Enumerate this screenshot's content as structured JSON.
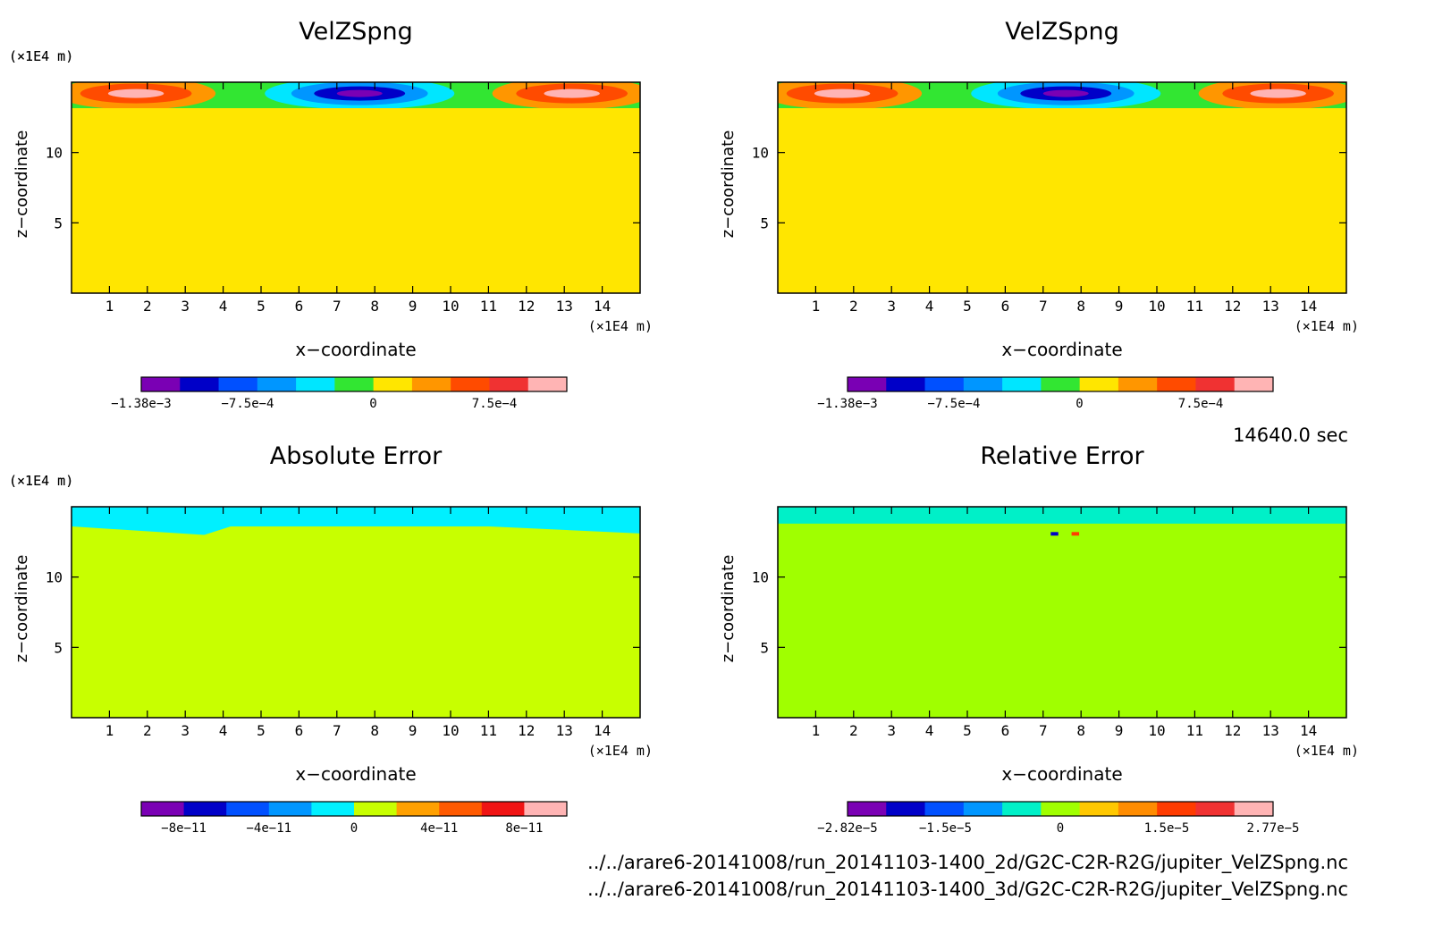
{
  "panels": [
    {
      "title": "VelZSpng",
      "y_unit": "(×1E4 m)",
      "x_unit": "(×1E4 m)",
      "xlabel": "x−coordinate",
      "ylabel": "z−coordinate",
      "x_ticks": [
        "1",
        "2",
        "3",
        "4",
        "5",
        "6",
        "7",
        "8",
        "9",
        "10",
        "11",
        "12",
        "13",
        "14"
      ],
      "y_ticks": [
        "5",
        "10"
      ],
      "colorbar_labels": [
        "−1.38e−3",
        "−7.5e−4",
        "0",
        "7.5e−4"
      ]
    },
    {
      "title": "VelZSpng",
      "y_unit": "(×1E4 m)",
      "x_unit": "(×1E4 m)",
      "xlabel": "x−coordinate",
      "ylabel": "z−coordinate",
      "x_ticks": [
        "1",
        "2",
        "3",
        "4",
        "5",
        "6",
        "7",
        "8",
        "9",
        "10",
        "11",
        "12",
        "13",
        "14"
      ],
      "y_ticks": [
        "5",
        "10"
      ],
      "colorbar_labels": [
        "−1.38e−3",
        "−7.5e−4",
        "0",
        "7.5e−4"
      ]
    },
    {
      "title": "Absolute Error",
      "y_unit": "(×1E4 m)",
      "x_unit": "(×1E4 m)",
      "xlabel": "x−coordinate",
      "ylabel": "z−coordinate",
      "x_ticks": [
        "1",
        "2",
        "3",
        "4",
        "5",
        "6",
        "7",
        "8",
        "9",
        "10",
        "11",
        "12",
        "13",
        "14"
      ],
      "y_ticks": [
        "5",
        "10"
      ],
      "colorbar_labels": [
        "−8e−11",
        "−4e−11",
        "0",
        "4e−11",
        "8e−11"
      ]
    },
    {
      "title": "Relative Error",
      "y_unit": "(×1E4 m)",
      "x_unit": "(×1E4 m)",
      "xlabel": "x−coordinate",
      "ylabel": "z−coordinate",
      "x_ticks": [
        "1",
        "2",
        "3",
        "4",
        "5",
        "6",
        "7",
        "8",
        "9",
        "10",
        "11",
        "12",
        "13",
        "14"
      ],
      "y_ticks": [
        "5",
        "10"
      ],
      "colorbar_labels": [
        "−2.82e−5",
        "−1.5e−5",
        "0",
        "1.5e−5",
        "2.77e−5"
      ]
    }
  ],
  "time_label": "14640.0 sec",
  "file_paths": [
    "../../arare6-20141008/run_20141103-1400_2d/G2C-C2R-R2G/jupiter_VelZSpng.nc",
    "../../arare6-20141008/run_20141103-1400_3d/G2C-C2R-R2G/jupiter_VelZSpng.nc"
  ],
  "colors": {
    "velz_colorbar": [
      "#7a00b4",
      "#0000c8",
      "#0050ff",
      "#0096ff",
      "#00e6ff",
      "#32e632",
      "#ffe600",
      "#ff9600",
      "#ff4b00",
      "#f03232",
      "#ffb4b4"
    ],
    "abs_colorbar": [
      "#7a00b4",
      "#0000c8",
      "#0050ff",
      "#0096ff",
      "#00f0ff",
      "#c8ff00",
      "#ffa000",
      "#ff5a00",
      "#f01414",
      "#ffb4b4"
    ],
    "rel_colorbar": [
      "#7a00b4",
      "#0000c8",
      "#0050ff",
      "#0096ff",
      "#00f0c8",
      "#a0ff00",
      "#ffc800",
      "#ff8c00",
      "#ff3c00",
      "#f03232",
      "#ffb4b4"
    ],
    "velz_background": "#ffe600",
    "abs_background": "#c8ff00",
    "rel_background": "#a0ff00"
  },
  "chart_data": [
    {
      "type": "heatmap",
      "title": "VelZSpng",
      "xlabel": "x−coordinate (×1E4 m)",
      "ylabel": "z−coordinate (×1E4 m)",
      "xlim": [
        0,
        15
      ],
      "ylim": [
        0,
        15
      ],
      "colorbar_range": [
        -0.00138,
        0.00138
      ],
      "colorbar_ticks": [
        -0.00138,
        -0.00075,
        0,
        0.00075
      ],
      "background_value": 0,
      "structure": "Near-zero field below z≈13; in the top layer (z≈13–15) negative values (down to about −1.38e−3) centred near x≈7–8 and positive values (up to about 1.38e−3) near x≈1–3 and x≈12–14."
    },
    {
      "type": "heatmap",
      "title": "VelZSpng",
      "xlabel": "x−coordinate (×1E4 m)",
      "ylabel": "z−coordinate (×1E4 m)",
      "xlim": [
        0,
        15
      ],
      "ylim": [
        0,
        15
      ],
      "colorbar_range": [
        -0.00138,
        0.00138
      ],
      "colorbar_ticks": [
        -0.00138,
        -0.00075,
        0,
        0.00075
      ],
      "background_value": 0,
      "structure": "Identical to the first panel."
    },
    {
      "type": "heatmap",
      "title": "Absolute Error",
      "xlabel": "x−coordinate (×1E4 m)",
      "ylabel": "z−coordinate (×1E4 m)",
      "xlim": [
        0,
        15
      ],
      "ylim": [
        0,
        15
      ],
      "colorbar_range": [
        -1e-10,
        1e-10
      ],
      "colorbar_ticks": [
        -8e-11,
        -4e-11,
        0,
        4e-11,
        8e-11
      ],
      "background_value": 0,
      "structure": "Zero almost everywhere; small negative bands (about −1e−11) confined to the top layer z≈13–15."
    },
    {
      "type": "heatmap",
      "title": "Relative Error",
      "xlabel": "x−coordinate (×1E4 m)",
      "ylabel": "z−coordinate (×1E4 m)",
      "xlim": [
        0,
        15
      ],
      "ylim": [
        0,
        15
      ],
      "colorbar_range": [
        -2.82e-05,
        2.77e-05
      ],
      "colorbar_ticks": [
        -2.82e-05,
        -1.5e-05,
        0,
        1.5e-05,
        2.77e-05
      ],
      "background_value": 0,
      "structure": "Zero almost everywhere; small negative patches in the top layer z≈13–15 with a narrow negative/positive pair near x≈7.5, z≈13."
    }
  ]
}
